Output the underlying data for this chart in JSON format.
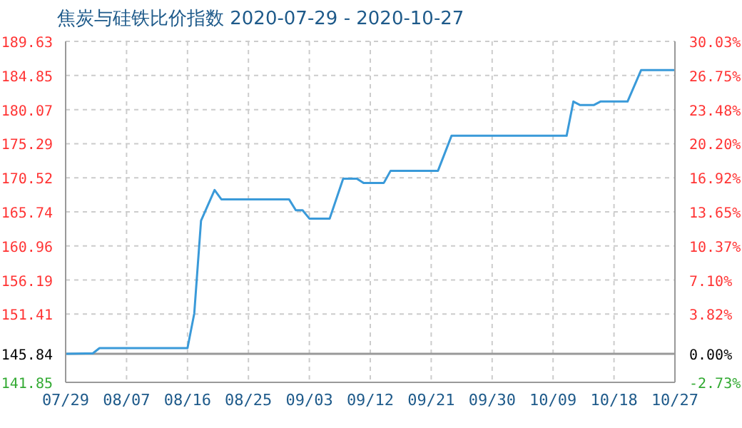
{
  "chart_data": {
    "type": "line",
    "title": "焦炭与硅铁比价指数 2020-07-29 - 2020-10-27",
    "x": [
      "2020-07-29",
      "2020-08-01",
      "2020-08-02",
      "2020-08-03",
      "2020-08-16",
      "2020-08-17",
      "2020-08-18",
      "2020-08-20",
      "2020-08-21",
      "2020-08-31",
      "2020-09-01",
      "2020-09-02",
      "2020-09-03",
      "2020-09-06",
      "2020-09-08",
      "2020-09-10",
      "2020-09-11",
      "2020-09-14",
      "2020-09-15",
      "2020-09-22",
      "2020-09-24",
      "2020-10-11",
      "2020-10-12",
      "2020-10-13",
      "2020-10-15",
      "2020-10-16",
      "2020-10-20",
      "2020-10-22",
      "2020-10-27"
    ],
    "series": [
      {
        "color": "#3a9ad9",
        "values": [
          145.84,
          145.9,
          145.9,
          146.65,
          146.65,
          151.5,
          164.5,
          168.8,
          167.5,
          167.5,
          165.96,
          165.96,
          164.8,
          164.8,
          170.4,
          170.4,
          169.8,
          169.8,
          171.5,
          171.5,
          176.4,
          176.4,
          181.2,
          180.7,
          180.7,
          181.2,
          181.2,
          185.6,
          185.6
        ]
      }
    ],
    "xlim": [
      "2020-07-29",
      "2020-10-27"
    ],
    "xticks": [
      {
        "value": "2020-07-29",
        "label": "07/29"
      },
      {
        "value": "2020-08-07",
        "label": "08/07"
      },
      {
        "value": "2020-08-16",
        "label": "08/16"
      },
      {
        "value": "2020-08-25",
        "label": "08/25"
      },
      {
        "value": "2020-09-03",
        "label": "09/03"
      },
      {
        "value": "2020-09-12",
        "label": "09/12"
      },
      {
        "value": "2020-09-21",
        "label": "09/21"
      },
      {
        "value": "2020-09-30",
        "label": "09/30"
      },
      {
        "value": "2020-10-09",
        "label": "10/09"
      },
      {
        "value": "2020-10-18",
        "label": "10/18"
      },
      {
        "value": "2020-10-27",
        "label": "10/27"
      }
    ],
    "ylim": [
      141.85,
      189.63
    ],
    "yticks": [
      141.85,
      145.84,
      151.41,
      156.19,
      160.96,
      165.74,
      170.52,
      175.29,
      180.07,
      184.85,
      189.63
    ],
    "y2lim": [
      -2.73,
      30.03
    ],
    "y2ticks": [
      {
        "value": -2.73,
        "label": "-2.73%"
      },
      {
        "value": 0,
        "label": "0.00%"
      },
      {
        "value": 3.82,
        "label": "3.82%"
      },
      {
        "value": 7.1,
        "label": "7.10%"
      },
      {
        "value": 10.37,
        "label": "10.37%"
      },
      {
        "value": 13.65,
        "label": "13.65%"
      },
      {
        "value": 16.92,
        "label": "16.92%"
      },
      {
        "value": 20.2,
        "label": "20.20%"
      },
      {
        "value": 23.48,
        "label": "23.48%"
      },
      {
        "value": 26.75,
        "label": "26.75%"
      },
      {
        "value": 30.03,
        "label": "30.03%"
      }
    ],
    "ref_lines": [
      {
        "axis": "y",
        "value": 145.84,
        "color": "#999999"
      }
    ],
    "grid": true,
    "marker": "none",
    "line_style": "solid"
  }
}
